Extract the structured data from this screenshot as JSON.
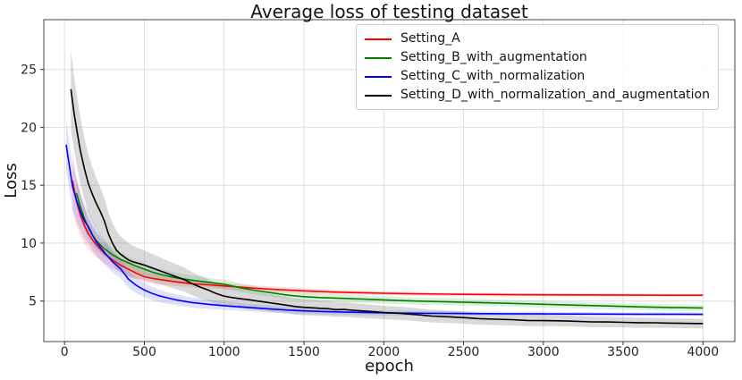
{
  "chart_data": {
    "type": "line",
    "title": "Average loss of testing dataset",
    "xlabel": "epoch",
    "ylabel": "Loss",
    "xlim": [
      -130,
      4200
    ],
    "ylim": [
      1.5,
      29.3
    ],
    "xticks": [
      0,
      500,
      1000,
      1500,
      2000,
      2500,
      3000,
      3500,
      4000
    ],
    "yticks": [
      5,
      10,
      15,
      20,
      25
    ],
    "grid": true,
    "grid_color": "#dedede",
    "spine_color": "#444444",
    "tick_color": "#333333",
    "tick_label_color": "#262626",
    "legend_position": "upper right",
    "series": [
      {
        "name": "Setting_A",
        "color": "#ff0000",
        "band_color": "rgba(255,0,0,0.13)",
        "points": [
          [
            50,
            15.4,
            2.6
          ],
          [
            75,
            13.6,
            2.1
          ],
          [
            100,
            12.4,
            1.8
          ],
          [
            125,
            11.5,
            1.55
          ],
          [
            150,
            10.8,
            1.35
          ],
          [
            175,
            10.3,
            1.2
          ],
          [
            200,
            9.85,
            1.05
          ],
          [
            250,
            9.1,
            0.85
          ],
          [
            300,
            8.55,
            0.72
          ],
          [
            350,
            8.1,
            0.62
          ],
          [
            400,
            7.75,
            0.55
          ],
          [
            450,
            7.4,
            0.5
          ],
          [
            500,
            7.1,
            0.46
          ],
          [
            550,
            6.95,
            0.43
          ],
          [
            600,
            6.85,
            0.4
          ],
          [
            700,
            6.65,
            0.36
          ],
          [
            800,
            6.5,
            0.33
          ],
          [
            900,
            6.4,
            0.3
          ],
          [
            1000,
            6.3,
            0.28
          ],
          [
            1100,
            6.2,
            0.26
          ],
          [
            1200,
            6.1,
            0.25
          ],
          [
            1300,
            6.02,
            0.24
          ],
          [
            1400,
            5.95,
            0.23
          ],
          [
            1500,
            5.88,
            0.22
          ],
          [
            1600,
            5.82,
            0.21
          ],
          [
            1700,
            5.77,
            0.2
          ],
          [
            1800,
            5.73,
            0.19
          ],
          [
            1900,
            5.7,
            0.18
          ],
          [
            2000,
            5.67,
            0.17
          ],
          [
            2200,
            5.62,
            0.16
          ],
          [
            2400,
            5.59,
            0.15
          ],
          [
            2600,
            5.57,
            0.15
          ],
          [
            2800,
            5.55,
            0.14
          ],
          [
            3000,
            5.54,
            0.14
          ],
          [
            3200,
            5.53,
            0.13
          ],
          [
            3400,
            5.52,
            0.13
          ],
          [
            3600,
            5.51,
            0.12
          ],
          [
            3800,
            5.5,
            0.12
          ],
          [
            4000,
            5.5,
            0.12
          ]
        ]
      },
      {
        "name": "Setting_B_with_augmentation",
        "color": "#008000",
        "band_color": "rgba(0,128,0,0.13)",
        "points": [
          [
            75,
            14.3,
            1.2
          ],
          [
            100,
            13.1,
            1.05
          ],
          [
            125,
            12.1,
            0.95
          ],
          [
            150,
            11.3,
            0.88
          ],
          [
            175,
            10.7,
            0.82
          ],
          [
            200,
            10.2,
            0.78
          ],
          [
            250,
            9.5,
            0.7
          ],
          [
            300,
            9.0,
            0.64
          ],
          [
            350,
            8.6,
            0.6
          ],
          [
            400,
            8.3,
            0.56
          ],
          [
            450,
            8.0,
            0.53
          ],
          [
            500,
            7.75,
            0.5
          ],
          [
            550,
            7.5,
            0.48
          ],
          [
            600,
            7.3,
            0.46
          ],
          [
            700,
            7.0,
            0.44
          ],
          [
            800,
            6.8,
            0.42
          ],
          [
            900,
            6.62,
            0.4
          ],
          [
            1000,
            6.45,
            0.39
          ],
          [
            1100,
            6.15,
            0.38
          ],
          [
            1200,
            5.9,
            0.37
          ],
          [
            1300,
            5.7,
            0.36
          ],
          [
            1400,
            5.5,
            0.35
          ],
          [
            1500,
            5.38,
            0.34
          ],
          [
            1600,
            5.3,
            0.34
          ],
          [
            1700,
            5.25,
            0.33
          ],
          [
            1800,
            5.2,
            0.33
          ],
          [
            1900,
            5.15,
            0.32
          ],
          [
            2000,
            5.1,
            0.32
          ],
          [
            2200,
            5.0,
            0.31
          ],
          [
            2400,
            4.93,
            0.3
          ],
          [
            2600,
            4.87,
            0.3
          ],
          [
            2800,
            4.8,
            0.29
          ],
          [
            3000,
            4.72,
            0.29
          ],
          [
            3200,
            4.64,
            0.28
          ],
          [
            3400,
            4.57,
            0.28
          ],
          [
            3600,
            4.5,
            0.27
          ],
          [
            3800,
            4.44,
            0.26
          ],
          [
            4000,
            4.4,
            0.26
          ]
        ]
      },
      {
        "name": "Setting_C_with_normalization",
        "color": "#0000ff",
        "band_color": "rgba(0,0,255,0.12)",
        "points": [
          [
            10,
            18.5,
            2.2
          ],
          [
            50,
            14.9,
            1.9
          ],
          [
            75,
            13.7,
            1.75
          ],
          [
            100,
            12.7,
            1.6
          ],
          [
            125,
            11.9,
            1.5
          ],
          [
            150,
            11.4,
            1.4
          ],
          [
            175,
            10.7,
            1.3
          ],
          [
            200,
            10.1,
            1.2
          ],
          [
            250,
            9.2,
            1.05
          ],
          [
            300,
            8.4,
            0.92
          ],
          [
            350,
            7.8,
            0.82
          ],
          [
            400,
            6.9,
            0.74
          ],
          [
            450,
            6.35,
            0.68
          ],
          [
            500,
            5.95,
            0.62
          ],
          [
            550,
            5.65,
            0.57
          ],
          [
            600,
            5.42,
            0.53
          ],
          [
            650,
            5.25,
            0.5
          ],
          [
            700,
            5.1,
            0.47
          ],
          [
            750,
            4.98,
            0.45
          ],
          [
            800,
            4.87,
            0.43
          ],
          [
            900,
            4.72,
            0.4
          ],
          [
            1000,
            4.6,
            0.37
          ],
          [
            1100,
            4.5,
            0.34
          ],
          [
            1200,
            4.4,
            0.32
          ],
          [
            1300,
            4.3,
            0.3
          ],
          [
            1400,
            4.22,
            0.28
          ],
          [
            1500,
            4.15,
            0.27
          ],
          [
            1600,
            4.1,
            0.26
          ],
          [
            1700,
            4.06,
            0.25
          ],
          [
            1800,
            4.03,
            0.24
          ],
          [
            1900,
            4.0,
            0.23
          ],
          [
            2000,
            3.98,
            0.22
          ],
          [
            2200,
            3.95,
            0.21
          ],
          [
            2400,
            3.93,
            0.2
          ],
          [
            2600,
            3.91,
            0.19
          ],
          [
            2800,
            3.9,
            0.18
          ],
          [
            3000,
            3.89,
            0.17
          ],
          [
            3200,
            3.88,
            0.17
          ],
          [
            3400,
            3.87,
            0.16
          ],
          [
            3600,
            3.86,
            0.16
          ],
          [
            3800,
            3.86,
            0.15
          ],
          [
            4000,
            3.85,
            0.15
          ]
        ]
      },
      {
        "name": "Setting_D_with_normalization_and_augmentation",
        "color": "#000000",
        "band_color": "rgba(128,128,128,0.30)",
        "points": [
          [
            40,
            23.3,
            3.4
          ],
          [
            60,
            21.2,
            3.2
          ],
          [
            80,
            19.5,
            3.0
          ],
          [
            100,
            17.9,
            2.85
          ],
          [
            125,
            16.4,
            2.65
          ],
          [
            150,
            15.1,
            2.5
          ],
          [
            175,
            14.2,
            2.35
          ],
          [
            200,
            13.4,
            2.2
          ],
          [
            225,
            12.7,
            2.05
          ],
          [
            250,
            11.9,
            1.95
          ],
          [
            275,
            10.8,
            1.85
          ],
          [
            300,
            10.0,
            1.75
          ],
          [
            325,
            9.4,
            1.65
          ],
          [
            350,
            9.05,
            1.55
          ],
          [
            375,
            8.8,
            1.5
          ],
          [
            400,
            8.55,
            1.45
          ],
          [
            425,
            8.4,
            1.4
          ],
          [
            450,
            8.3,
            1.35
          ],
          [
            475,
            8.2,
            1.3
          ],
          [
            500,
            8.1,
            1.28
          ],
          [
            550,
            7.85,
            1.22
          ],
          [
            600,
            7.6,
            1.17
          ],
          [
            650,
            7.35,
            1.12
          ],
          [
            700,
            7.1,
            1.08
          ],
          [
            750,
            6.85,
            1.04
          ],
          [
            800,
            6.5,
            1.0
          ],
          [
            850,
            6.2,
            0.97
          ],
          [
            900,
            5.95,
            0.94
          ],
          [
            950,
            5.65,
            0.91
          ],
          [
            1000,
            5.42,
            0.88
          ],
          [
            1050,
            5.3,
            0.85
          ],
          [
            1100,
            5.2,
            0.83
          ],
          [
            1150,
            5.12,
            0.81
          ],
          [
            1200,
            5.02,
            0.79
          ],
          [
            1250,
            4.92,
            0.77
          ],
          [
            1300,
            4.82,
            0.75
          ],
          [
            1350,
            4.72,
            0.73
          ],
          [
            1400,
            4.62,
            0.71
          ],
          [
            1450,
            4.52,
            0.7
          ],
          [
            1500,
            4.46,
            0.68
          ],
          [
            1550,
            4.42,
            0.67
          ],
          [
            1600,
            4.37,
            0.66
          ],
          [
            1650,
            4.34,
            0.65
          ],
          [
            1700,
            4.26,
            0.64
          ],
          [
            1750,
            4.28,
            0.63
          ],
          [
            1800,
            4.21,
            0.62
          ],
          [
            1850,
            4.16,
            0.61
          ],
          [
            1900,
            4.11,
            0.6
          ],
          [
            1950,
            4.06,
            0.59
          ],
          [
            2000,
            4.01,
            0.58
          ],
          [
            2100,
            3.94,
            0.57
          ],
          [
            2200,
            3.83,
            0.56
          ],
          [
            2300,
            3.7,
            0.55
          ],
          [
            2400,
            3.64,
            0.54
          ],
          [
            2500,
            3.57,
            0.53
          ],
          [
            2600,
            3.48,
            0.52
          ],
          [
            2700,
            3.43,
            0.51
          ],
          [
            2800,
            3.39,
            0.5
          ],
          [
            2900,
            3.32,
            0.49
          ],
          [
            3000,
            3.31,
            0.48
          ],
          [
            3100,
            3.29,
            0.47
          ],
          [
            3200,
            3.25,
            0.46
          ],
          [
            3300,
            3.2,
            0.45
          ],
          [
            3400,
            3.19,
            0.45
          ],
          [
            3500,
            3.16,
            0.44
          ],
          [
            3600,
            3.13,
            0.43
          ],
          [
            3700,
            3.12,
            0.43
          ],
          [
            3800,
            3.09,
            0.42
          ],
          [
            3900,
            3.07,
            0.42
          ],
          [
            4000,
            3.05,
            0.41
          ]
        ]
      }
    ]
  }
}
